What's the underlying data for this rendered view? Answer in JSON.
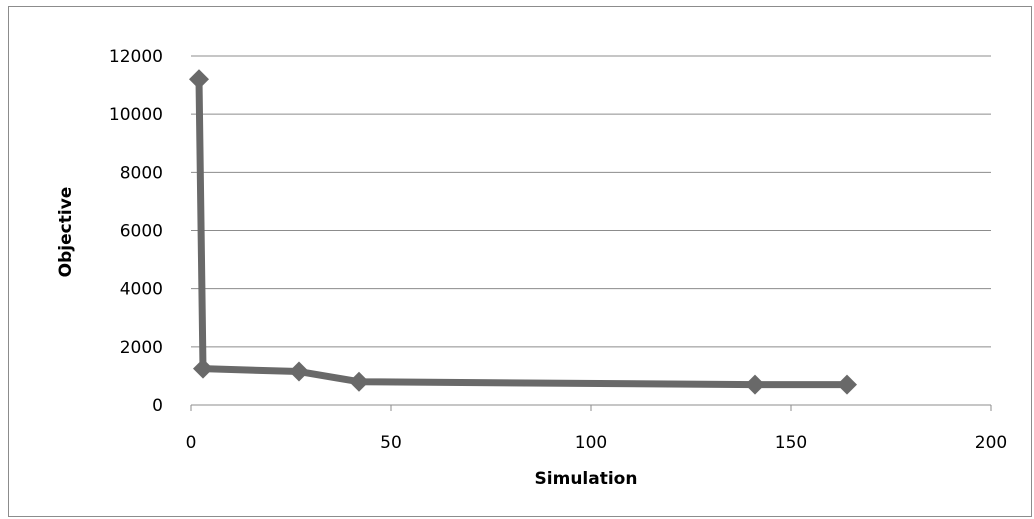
{
  "chart_data": {
    "type": "scatter",
    "title": "",
    "xlabel": "Simulation",
    "ylabel": "Objective",
    "xlim": [
      0,
      200
    ],
    "ylim": [
      0,
      12000
    ],
    "x_ticks": [
      0,
      50,
      100,
      150,
      200
    ],
    "y_ticks": [
      0,
      2000,
      4000,
      6000,
      8000,
      10000,
      12000
    ],
    "x_tick_labels": [
      "0",
      "50",
      "100",
      "150",
      "200"
    ],
    "y_tick_labels": [
      "0",
      "2000",
      "4000",
      "6000",
      "8000",
      "10000",
      "12000"
    ],
    "grid": "horizontal",
    "legend": "none",
    "series": [
      {
        "x": [
          2,
          3,
          27,
          42,
          141,
          164
        ],
        "y": [
          11200,
          1250,
          1150,
          800,
          700,
          700
        ],
        "color": "#696969",
        "marker": "diamond"
      }
    ]
  }
}
